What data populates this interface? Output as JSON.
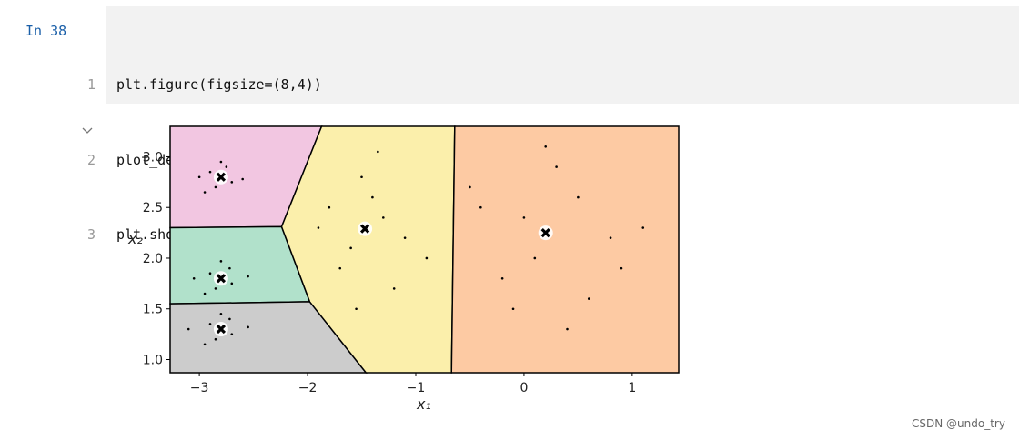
{
  "cell": {
    "prompt": "In 38",
    "line_numbers": [
      1,
      2,
      3
    ],
    "lines": [
      "plt.figure(figsize=(8,4))",
      "plot_decision_boundaries(kmeans, X)",
      "plt.show()"
    ]
  },
  "chart_data": {
    "type": "scatter",
    "xlabel": "x₁",
    "ylabel": "x₂",
    "xlim": [
      -3.27,
      1.43
    ],
    "ylim": [
      0.87,
      3.3
    ],
    "xticks": [
      {
        "value": -3,
        "label": "−3"
      },
      {
        "value": -2,
        "label": "−2"
      },
      {
        "value": -1,
        "label": "−1"
      },
      0,
      1
    ],
    "yticks": [
      {
        "value": 1,
        "label": "1.0"
      },
      1.5,
      {
        "value": 2,
        "label": "2.0"
      },
      2.5,
      {
        "value": 3,
        "label": "3.0"
      }
    ],
    "regions": [
      {
        "color": "#f2c6e1",
        "x": [
          -3.27,
          -1.87,
          -2.24,
          -3.27
        ],
        "y": [
          3.3,
          3.3,
          2.31,
          2.3
        ]
      },
      {
        "color": "#b1e1cb",
        "x": [
          -3.27,
          -2.24,
          -1.98,
          -3.27
        ],
        "y": [
          2.3,
          2.31,
          1.57,
          1.55
        ]
      },
      {
        "color": "#cccccc",
        "x": [
          -3.27,
          -1.98,
          -1.46,
          -3.27
        ],
        "y": [
          1.55,
          1.57,
          0.87,
          0.87
        ]
      },
      {
        "color": "#fbefab",
        "x": [
          -1.87,
          -0.64,
          -0.67,
          -1.46,
          -1.98,
          -2.24
        ],
        "y": [
          3.3,
          3.3,
          0.87,
          0.87,
          1.57,
          2.31
        ]
      },
      {
        "color": "#fdcaa3",
        "x": [
          -0.64,
          1.43,
          1.43,
          -0.67
        ],
        "y": [
          3.3,
          3.3,
          0.87,
          0.87
        ]
      }
    ],
    "points": {
      "color": "#000000",
      "x": [
        -2.9,
        -2.7,
        -2.85,
        -2.75,
        -3.0,
        -2.6,
        -2.8,
        -2.95,
        -2.9,
        -2.7,
        -2.85,
        -2.72,
        -3.05,
        -2.55,
        -2.8,
        -2.95,
        -2.9,
        -2.7,
        -2.85,
        -2.72,
        -3.1,
        -2.55,
        -2.8,
        -2.95,
        -1.8,
        -1.6,
        -1.3,
        -1.1,
        -1.5,
        -1.7,
        -1.2,
        -1.4,
        -1.9,
        -0.9,
        -1.55,
        -1.35,
        -0.4,
        0.1,
        0.5,
        0.8,
        -0.2,
        0.3,
        0.6,
        0.0,
        1.1,
        -0.5,
        0.4,
        0.2,
        0.9,
        -0.1
      ],
      "y": [
        2.85,
        2.75,
        2.7,
        2.9,
        2.8,
        2.78,
        2.95,
        2.65,
        1.85,
        1.75,
        1.7,
        1.9,
        1.8,
        1.82,
        1.97,
        1.65,
        1.35,
        1.25,
        1.2,
        1.4,
        1.3,
        1.32,
        1.45,
        1.15,
        2.5,
        2.1,
        2.4,
        2.2,
        2.8,
        1.9,
        1.7,
        2.6,
        2.3,
        2.0,
        1.5,
        3.05,
        2.5,
        2.0,
        2.6,
        2.2,
        1.8,
        2.9,
        1.6,
        2.4,
        2.3,
        2.7,
        1.3,
        3.1,
        1.9,
        1.5
      ]
    },
    "centroids": {
      "x": [
        -2.8,
        -2.8,
        -2.8,
        -1.47,
        0.2
      ],
      "y": [
        2.8,
        1.8,
        1.3,
        2.29,
        2.25
      ]
    }
  },
  "watermark": "CSDN @undo_try"
}
